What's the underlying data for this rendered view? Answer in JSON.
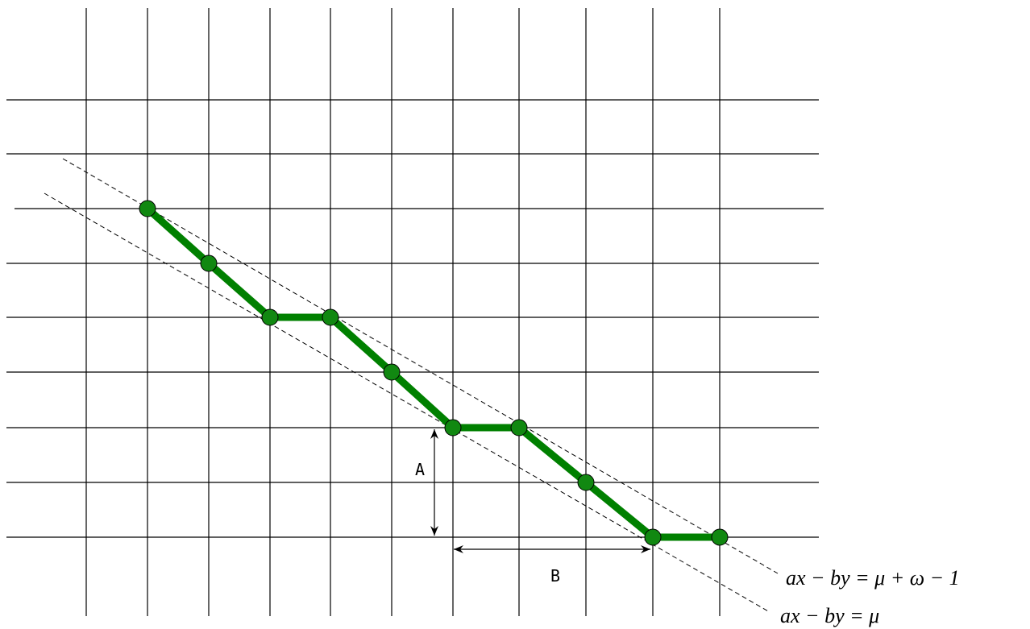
{
  "labels": {
    "a": "A",
    "b": "B"
  },
  "lines": {
    "upper": "ax − by = μ + ω − 1",
    "lower": "ax − by = μ"
  }
}
